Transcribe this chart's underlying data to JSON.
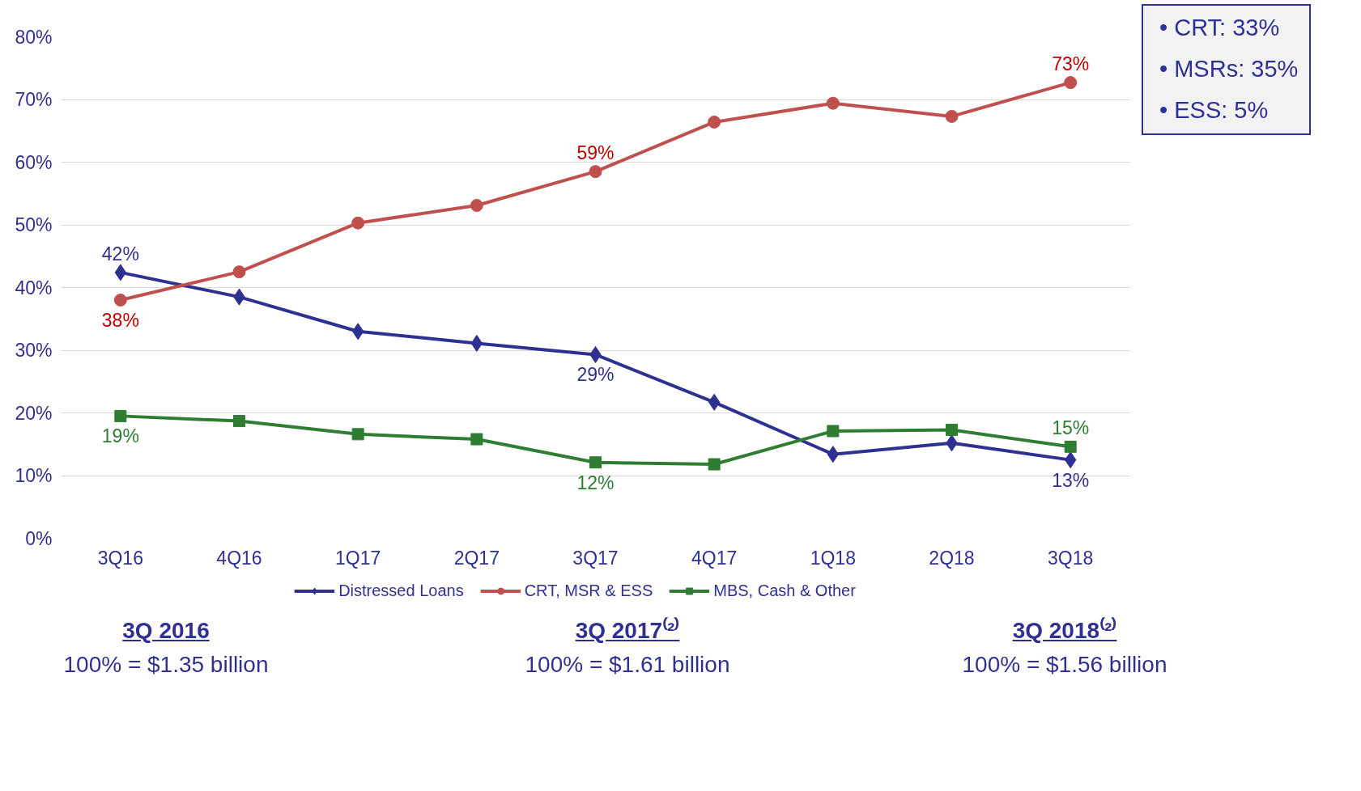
{
  "chart_data": {
    "type": "line",
    "categories": [
      "3Q16",
      "4Q16",
      "1Q17",
      "2Q17",
      "3Q17",
      "4Q17",
      "1Q18",
      "2Q18",
      "3Q18"
    ],
    "series": [
      {
        "name": "Distressed Loans",
        "color": "#2e3192",
        "marker": "diamond",
        "values": [
          42.4,
          38.5,
          33.0,
          31.1,
          29.3,
          21.7,
          13.4,
          15.2,
          12.5
        ],
        "value_labels": [
          "42%",
          null,
          null,
          null,
          "29%",
          null,
          null,
          null,
          "13%"
        ]
      },
      {
        "name": "CRT, MSR & ESS",
        "color": "#c0504d",
        "marker": "circle",
        "values": [
          38.0,
          42.5,
          50.3,
          53.1,
          58.5,
          66.4,
          69.4,
          67.3,
          72.7
        ],
        "value_labels": [
          "38%",
          null,
          null,
          null,
          "59%",
          null,
          null,
          null,
          "73%"
        ]
      },
      {
        "name": "MBS, Cash & Other",
        "color": "#2e7d32",
        "marker": "square",
        "values": [
          19.5,
          18.7,
          16.6,
          15.8,
          12.1,
          11.8,
          17.1,
          17.3,
          14.6
        ],
        "value_labels": [
          "19%",
          null,
          null,
          null,
          "12%",
          null,
          null,
          null,
          "15%"
        ]
      }
    ],
    "ylim": [
      0,
      80
    ],
    "yticks": [
      {
        "value": 0,
        "label": "0%"
      },
      {
        "value": 10,
        "label": "10%"
      },
      {
        "value": 20,
        "label": "20%"
      },
      {
        "value": 30,
        "label": "30%"
      },
      {
        "value": 40,
        "label": "40%"
      },
      {
        "value": 50,
        "label": "50%"
      },
      {
        "value": 60,
        "label": "60%"
      },
      {
        "value": 70,
        "label": "70%"
      },
      {
        "value": 80,
        "label": "80%"
      }
    ],
    "grid": "y",
    "legend": "bottom",
    "line_style": "solid",
    "annotations": [
      "•  CRT:    33%\n•  MSRs: 35%\n•  ESS:     5%",
      "3Q 2016",
      "100% = $1.35 billion",
      "3Q 2017⁽²⁾",
      "100% = $1.61 billion",
      "3Q 2018⁽²⁾",
      "100% = $1.56 billion"
    ]
  }
}
